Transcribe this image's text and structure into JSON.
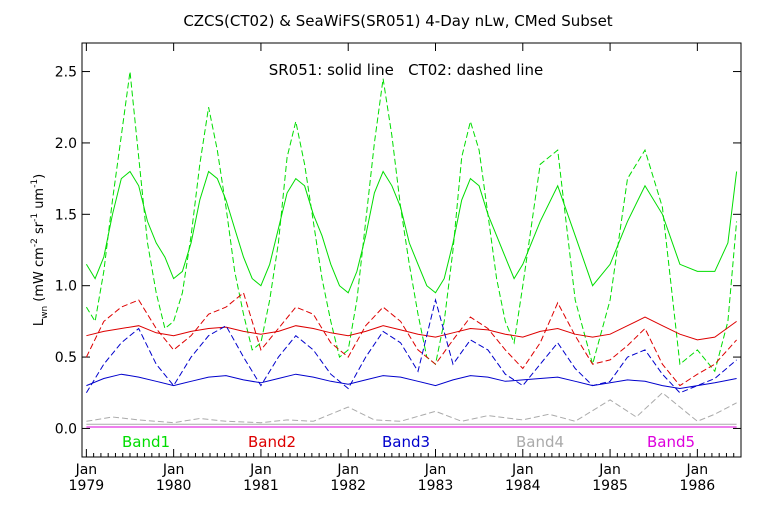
{
  "chart_data": {
    "type": "line",
    "title": "CZCS(CT02) & SeaWiFS(SR051) 4-Day nLw, CMed Subset",
    "annotation": "SR051: solid line   CT02: dashed line",
    "ylabel": "L",
    "ylabel_sub": "wn",
    "ylabel_units": "(mW cm",
    "ylabel_units_sup1": "-2",
    "ylabel_units_mid1": " sr",
    "ylabel_units_sup2": "-1",
    "ylabel_units_mid2": " um",
    "ylabel_units_sup3": "-1",
    "ylabel_units_end": ")",
    "ylim": [
      -0.2,
      2.7
    ],
    "yticks": [
      {
        "value": 0.0,
        "label": "0.0"
      },
      {
        "value": 0.5,
        "label": "0.5"
      },
      {
        "value": 1.0,
        "label": "1.0"
      },
      {
        "value": 1.5,
        "label": "1.5"
      },
      {
        "value": 2.0,
        "label": "2.0"
      },
      {
        "value": 2.5,
        "label": "2.5"
      }
    ],
    "xlim": [
      1978.95,
      1986.5
    ],
    "xticks": [
      {
        "value": 1979.0,
        "month": "Jan",
        "year": "1979"
      },
      {
        "value": 1980.0,
        "month": "Jan",
        "year": "1980"
      },
      {
        "value": 1981.0,
        "month": "Jan",
        "year": "1981"
      },
      {
        "value": 1982.0,
        "month": "Jan",
        "year": "1982"
      },
      {
        "value": 1983.0,
        "month": "Jan",
        "year": "1983"
      },
      {
        "value": 1984.0,
        "month": "Jan",
        "year": "1984"
      },
      {
        "value": 1985.0,
        "month": "Jan",
        "year": "1985"
      },
      {
        "value": 1986.0,
        "month": "Jan",
        "year": "1986"
      }
    ],
    "legend": [
      {
        "label": "Band1",
        "color": "#00dd00"
      },
      {
        "label": "Band2",
        "color": "#dd0000"
      },
      {
        "label": "Band3",
        "color": "#0000cc"
      },
      {
        "label": "Band4",
        "color": "#aaaaaa"
      },
      {
        "label": "Band5",
        "color": "#dd00dd"
      }
    ],
    "series": [
      {
        "band": "Band1",
        "style": "solid",
        "color": "#00dd00",
        "x": [
          1979.0,
          1979.1,
          1979.2,
          1979.3,
          1979.4,
          1979.5,
          1979.6,
          1979.7,
          1979.8,
          1979.9,
          1980.0,
          1980.1,
          1980.2,
          1980.3,
          1980.4,
          1980.5,
          1980.6,
          1980.7,
          1980.8,
          1980.9,
          1981.0,
          1981.1,
          1981.2,
          1981.3,
          1981.4,
          1981.5,
          1981.6,
          1981.7,
          1981.8,
          1981.9,
          1982.0,
          1982.1,
          1982.2,
          1982.3,
          1982.4,
          1982.5,
          1982.6,
          1982.7,
          1982.8,
          1982.9,
          1983.0,
          1983.1,
          1983.2,
          1983.3,
          1983.4,
          1983.5,
          1983.6,
          1983.7,
          1983.8,
          1983.9,
          1984.0,
          1984.2,
          1984.4,
          1984.6,
          1984.8,
          1985.0,
          1985.2,
          1985.4,
          1985.6,
          1985.8,
          1986.0,
          1986.2,
          1986.35,
          1986.45
        ],
        "y": [
          1.15,
          1.05,
          1.2,
          1.5,
          1.75,
          1.8,
          1.7,
          1.45,
          1.3,
          1.2,
          1.05,
          1.1,
          1.3,
          1.6,
          1.8,
          1.75,
          1.6,
          1.4,
          1.2,
          1.05,
          1.0,
          1.15,
          1.4,
          1.65,
          1.75,
          1.7,
          1.5,
          1.35,
          1.15,
          1.0,
          0.95,
          1.1,
          1.35,
          1.65,
          1.8,
          1.7,
          1.55,
          1.3,
          1.15,
          1.0,
          0.95,
          1.05,
          1.3,
          1.6,
          1.75,
          1.7,
          1.5,
          1.35,
          1.2,
          1.05,
          1.15,
          1.45,
          1.7,
          1.35,
          1.0,
          1.15,
          1.45,
          1.7,
          1.5,
          1.15,
          1.1,
          1.1,
          1.3,
          1.8
        ]
      },
      {
        "band": "Band1",
        "style": "dashed",
        "color": "#00dd00",
        "x": [
          1979.0,
          1979.1,
          1979.2,
          1979.3,
          1979.4,
          1979.5,
          1979.6,
          1979.7,
          1979.8,
          1979.9,
          1980.0,
          1980.1,
          1980.2,
          1980.3,
          1980.4,
          1980.5,
          1980.6,
          1980.7,
          1980.8,
          1980.9,
          1981.0,
          1981.1,
          1981.2,
          1981.3,
          1981.4,
          1981.5,
          1981.6,
          1981.7,
          1981.8,
          1981.9,
          1982.0,
          1982.1,
          1982.2,
          1982.3,
          1982.4,
          1982.5,
          1982.6,
          1982.7,
          1982.8,
          1982.9,
          1983.0,
          1983.1,
          1983.2,
          1983.3,
          1983.4,
          1983.5,
          1983.6,
          1983.7,
          1983.8,
          1983.9,
          1984.0,
          1984.2,
          1984.4,
          1984.6,
          1984.8,
          1985.0,
          1985.2,
          1985.4,
          1985.6,
          1985.8,
          1986.0,
          1986.2,
          1986.35,
          1986.45
        ],
        "y": [
          0.85,
          0.75,
          1.1,
          1.6,
          2.05,
          2.5,
          1.9,
          1.3,
          0.95,
          0.7,
          0.75,
          0.95,
          1.35,
          1.85,
          2.25,
          1.95,
          1.55,
          1.1,
          0.8,
          0.55,
          0.6,
          0.9,
          1.3,
          1.9,
          2.15,
          1.85,
          1.45,
          1.05,
          0.75,
          0.5,
          0.55,
          0.9,
          1.45,
          2.0,
          2.45,
          2.05,
          1.55,
          1.15,
          0.8,
          0.5,
          0.45,
          0.75,
          1.25,
          1.9,
          2.15,
          1.95,
          1.5,
          1.05,
          0.75,
          0.6,
          1.0,
          1.85,
          1.95,
          0.9,
          0.45,
          0.9,
          1.75,
          1.95,
          1.55,
          0.45,
          0.55,
          0.4,
          0.75,
          1.45
        ]
      },
      {
        "band": "Band2",
        "style": "solid",
        "color": "#dd0000",
        "x": [
          1979.0,
          1979.2,
          1979.4,
          1979.6,
          1979.8,
          1980.0,
          1980.2,
          1980.4,
          1980.6,
          1980.8,
          1981.0,
          1981.2,
          1981.4,
          1981.6,
          1981.8,
          1982.0,
          1982.2,
          1982.4,
          1982.6,
          1982.8,
          1983.0,
          1983.2,
          1983.4,
          1983.6,
          1983.8,
          1984.0,
          1984.2,
          1984.4,
          1984.6,
          1984.8,
          1985.0,
          1985.2,
          1985.4,
          1985.6,
          1985.8,
          1986.0,
          1986.2,
          1986.45
        ],
        "y": [
          0.65,
          0.68,
          0.7,
          0.72,
          0.67,
          0.65,
          0.68,
          0.7,
          0.71,
          0.68,
          0.66,
          0.68,
          0.72,
          0.7,
          0.67,
          0.65,
          0.68,
          0.72,
          0.69,
          0.66,
          0.64,
          0.67,
          0.7,
          0.69,
          0.66,
          0.64,
          0.68,
          0.7,
          0.66,
          0.64,
          0.66,
          0.72,
          0.78,
          0.72,
          0.66,
          0.62,
          0.64,
          0.75
        ]
      },
      {
        "band": "Band2",
        "style": "dashed",
        "color": "#dd0000",
        "x": [
          1979.0,
          1979.2,
          1979.4,
          1979.6,
          1979.8,
          1980.0,
          1980.2,
          1980.4,
          1980.6,
          1980.8,
          1981.0,
          1981.2,
          1981.4,
          1981.6,
          1981.8,
          1982.0,
          1982.2,
          1982.4,
          1982.6,
          1982.8,
          1983.0,
          1983.2,
          1983.4,
          1983.6,
          1983.8,
          1984.0,
          1984.2,
          1984.4,
          1984.6,
          1984.8,
          1985.0,
          1985.2,
          1985.4,
          1985.6,
          1985.8,
          1986.0,
          1986.2,
          1986.45
        ],
        "y": [
          0.5,
          0.75,
          0.85,
          0.9,
          0.7,
          0.55,
          0.65,
          0.8,
          0.85,
          0.95,
          0.55,
          0.7,
          0.85,
          0.8,
          0.6,
          0.5,
          0.72,
          0.85,
          0.75,
          0.55,
          0.45,
          0.62,
          0.78,
          0.7,
          0.55,
          0.42,
          0.6,
          0.88,
          0.65,
          0.45,
          0.48,
          0.58,
          0.7,
          0.45,
          0.3,
          0.38,
          0.45,
          0.62
        ]
      },
      {
        "band": "Band3",
        "style": "solid",
        "color": "#0000cc",
        "x": [
          1979.0,
          1979.2,
          1979.4,
          1979.6,
          1979.8,
          1980.0,
          1980.2,
          1980.4,
          1980.6,
          1980.8,
          1981.0,
          1981.2,
          1981.4,
          1981.6,
          1981.8,
          1982.0,
          1982.2,
          1982.4,
          1982.6,
          1982.8,
          1983.0,
          1983.2,
          1983.4,
          1983.6,
          1983.8,
          1984.0,
          1984.2,
          1984.4,
          1984.6,
          1984.8,
          1985.0,
          1985.2,
          1985.4,
          1985.6,
          1985.8,
          1986.0,
          1986.2,
          1986.45
        ],
        "y": [
          0.3,
          0.35,
          0.38,
          0.36,
          0.33,
          0.3,
          0.33,
          0.36,
          0.37,
          0.34,
          0.32,
          0.35,
          0.38,
          0.36,
          0.33,
          0.31,
          0.34,
          0.37,
          0.36,
          0.33,
          0.3,
          0.34,
          0.37,
          0.36,
          0.33,
          0.34,
          0.35,
          0.36,
          0.33,
          0.3,
          0.32,
          0.34,
          0.33,
          0.3,
          0.28,
          0.3,
          0.32,
          0.35
        ]
      },
      {
        "band": "Band3",
        "style": "dashed",
        "color": "#0000cc",
        "x": [
          1979.0,
          1979.2,
          1979.4,
          1979.6,
          1979.8,
          1980.0,
          1980.2,
          1980.4,
          1980.6,
          1980.8,
          1981.0,
          1981.2,
          1981.4,
          1981.6,
          1981.8,
          1982.0,
          1982.2,
          1982.4,
          1982.6,
          1982.8,
          1983.0,
          1983.2,
          1983.4,
          1983.6,
          1983.8,
          1984.0,
          1984.2,
          1984.4,
          1984.6,
          1984.8,
          1985.0,
          1985.2,
          1985.4,
          1985.6,
          1985.8,
          1986.0,
          1986.2,
          1986.45
        ],
        "y": [
          0.25,
          0.45,
          0.6,
          0.7,
          0.45,
          0.3,
          0.5,
          0.65,
          0.72,
          0.5,
          0.3,
          0.5,
          0.65,
          0.55,
          0.38,
          0.28,
          0.5,
          0.68,
          0.6,
          0.4,
          0.9,
          0.45,
          0.62,
          0.55,
          0.38,
          0.3,
          0.45,
          0.6,
          0.42,
          0.3,
          0.33,
          0.5,
          0.55,
          0.38,
          0.25,
          0.3,
          0.35,
          0.48
        ]
      },
      {
        "band": "Band4",
        "style": "solid",
        "color": "#aaaaaa",
        "x": [
          1979.0,
          1979.5,
          1980.0,
          1980.5,
          1981.0,
          1981.5,
          1982.0,
          1982.5,
          1983.0,
          1983.5,
          1984.0,
          1984.5,
          1985.0,
          1985.5,
          1986.0,
          1986.45
        ],
        "y": [
          0.03,
          0.03,
          0.03,
          0.03,
          0.03,
          0.03,
          0.03,
          0.03,
          0.03,
          0.03,
          0.03,
          0.03,
          0.03,
          0.03,
          0.03,
          0.03
        ]
      },
      {
        "band": "Band4",
        "style": "dashed",
        "color": "#aaaaaa",
        "x": [
          1979.0,
          1979.3,
          1979.6,
          1980.0,
          1980.3,
          1980.6,
          1981.0,
          1981.3,
          1981.6,
          1982.0,
          1982.3,
          1982.6,
          1983.0,
          1983.3,
          1983.6,
          1984.0,
          1984.3,
          1984.6,
          1985.0,
          1985.3,
          1985.6,
          1986.0,
          1986.2,
          1986.45
        ],
        "y": [
          0.05,
          0.08,
          0.06,
          0.04,
          0.07,
          0.05,
          0.04,
          0.06,
          0.05,
          0.15,
          0.06,
          0.05,
          0.12,
          0.05,
          0.09,
          0.06,
          0.1,
          0.05,
          0.2,
          0.08,
          0.25,
          0.05,
          0.1,
          0.18
        ]
      },
      {
        "band": "Band5",
        "style": "solid",
        "color": "#dd00dd",
        "x": [
          1979.0,
          1980.0,
          1981.0,
          1982.0,
          1983.0,
          1984.0,
          1985.0,
          1986.0,
          1986.45
        ],
        "y": [
          0.01,
          0.01,
          0.01,
          0.01,
          0.01,
          0.01,
          0.01,
          0.01,
          0.01
        ]
      }
    ]
  }
}
